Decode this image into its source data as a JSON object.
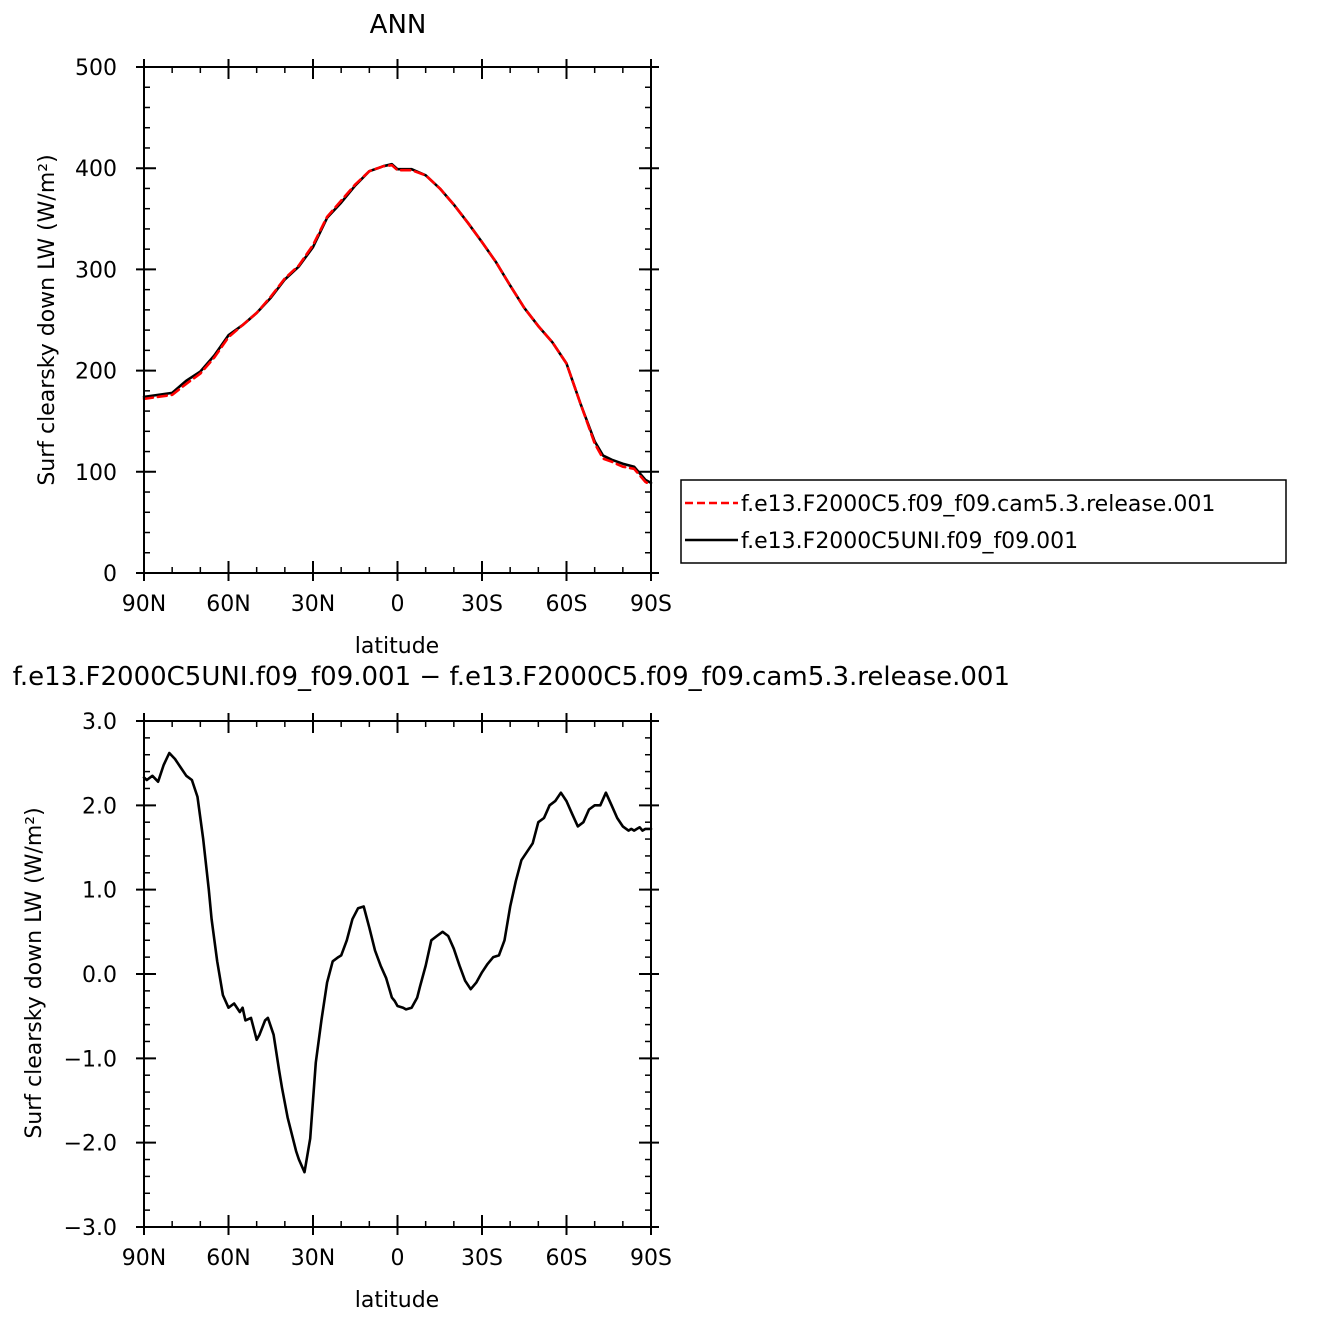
{
  "colors": {
    "axis": "#000000",
    "control": "#000000",
    "test": "#ff0000"
  },
  "chart_data": [
    {
      "type": "line",
      "title": "ANN",
      "xlabel": "latitude",
      "ylabel": "Surf clearsky down LW (W/m²)",
      "xlim": [
        90,
        -90
      ],
      "ylim": [
        0,
        500
      ],
      "xticks": [
        {
          "v": 90,
          "label": "90N"
        },
        {
          "v": 60,
          "label": "60N"
        },
        {
          "v": 30,
          "label": "30N"
        },
        {
          "v": 0,
          "label": "0"
        },
        {
          "v": -30,
          "label": "30S"
        },
        {
          "v": -60,
          "label": "60S"
        },
        {
          "v": -90,
          "label": "90S"
        }
      ],
      "yticks": [
        {
          "v": 0,
          "label": "0"
        },
        {
          "v": 100,
          "label": "100"
        },
        {
          "v": 200,
          "label": "200"
        },
        {
          "v": 300,
          "label": "300"
        },
        {
          "v": 400,
          "label": "400"
        },
        {
          "v": 500,
          "label": "500"
        }
      ],
      "legend_position": "right",
      "series": [
        {
          "name": "f.e13.F2000C5.f09_f09.cam5.3.release.001",
          "color": "#ff0000",
          "dash": "dashed",
          "x": [
            90,
            85,
            80,
            75,
            70,
            65,
            60,
            55,
            50,
            45,
            40,
            35,
            30,
            25,
            20,
            15,
            10,
            5,
            2,
            0,
            -5,
            -10,
            -15,
            -20,
            -25,
            -30,
            -35,
            -40,
            -45,
            -50,
            -55,
            -60,
            -65,
            -70,
            -73,
            -76,
            -80,
            -84,
            -88,
            -90
          ],
          "y": [
            172,
            174,
            176,
            187,
            197,
            213,
            233,
            245,
            257,
            273,
            291,
            304,
            324,
            352,
            368,
            384,
            397,
            402,
            403,
            398,
            398,
            393,
            380,
            364,
            346,
            327,
            307,
            284,
            262,
            244,
            228,
            207,
            167,
            128,
            113,
            110,
            105,
            103,
            90,
            87
          ]
        },
        {
          "name": "f.e13.F2000C5UNI.f09_f09.001",
          "color": "#000000",
          "dash": "solid",
          "x": [
            90,
            85,
            80,
            75,
            70,
            65,
            60,
            55,
            50,
            45,
            40,
            35,
            30,
            25,
            20,
            15,
            10,
            5,
            2,
            0,
            -5,
            -10,
            -15,
            -20,
            -25,
            -30,
            -35,
            -40,
            -45,
            -50,
            -55,
            -60,
            -65,
            -70,
            -73,
            -76,
            -80,
            -84,
            -88,
            -90
          ],
          "y": [
            174,
            176,
            178,
            190,
            199,
            215,
            235,
            245,
            257,
            272,
            290,
            303,
            322,
            351,
            366,
            383,
            397,
            402,
            404,
            399,
            399,
            393,
            380,
            364,
            346,
            327,
            307,
            284,
            262,
            244,
            228,
            207,
            167,
            130,
            116,
            112,
            108,
            105,
            92,
            89
          ]
        }
      ]
    },
    {
      "type": "line",
      "title": "f.e13.F2000C5UNI.f09_f09.001 − f.e13.F2000C5.f09_f09.cam5.3.release.001",
      "xlabel": "latitude",
      "ylabel": "Surf clearsky down LW (W/m²)",
      "xlim": [
        90,
        -90
      ],
      "ylim": [
        -3.0,
        3.0
      ],
      "xticks": [
        {
          "v": 90,
          "label": "90N"
        },
        {
          "v": 60,
          "label": "60N"
        },
        {
          "v": 30,
          "label": "30N"
        },
        {
          "v": 0,
          "label": "0"
        },
        {
          "v": -30,
          "label": "30S"
        },
        {
          "v": -60,
          "label": "60S"
        },
        {
          "v": -90,
          "label": "90S"
        }
      ],
      "yticks": [
        {
          "v": -3.0,
          "label": "−3.0"
        },
        {
          "v": -2.0,
          "label": "−2.0"
        },
        {
          "v": -1.0,
          "label": "−1.0"
        },
        {
          "v": 0.0,
          "label": "0.0"
        },
        {
          "v": 1.0,
          "label": "1.0"
        },
        {
          "v": 2.0,
          "label": "2.0"
        },
        {
          "v": 3.0,
          "label": "3.0"
        }
      ],
      "series": [
        {
          "color": "#000000",
          "dash": "solid",
          "x": [
            90,
            89,
            87,
            85,
            83,
            81,
            79,
            78,
            77,
            75,
            73,
            71,
            69,
            67,
            66,
            64,
            62,
            60,
            58,
            56,
            55,
            54,
            52,
            50,
            49,
            47,
            46,
            44,
            42,
            41,
            39,
            36,
            35,
            33,
            31,
            29,
            27,
            25,
            23,
            21,
            20,
            18,
            16,
            14,
            12,
            10,
            8,
            6,
            4,
            2,
            1,
            0,
            -2,
            -3,
            -5,
            -7,
            -8,
            -10,
            -12,
            -14,
            -16,
            -18,
            -20,
            -22,
            -24,
            -26,
            -28,
            -30,
            -32,
            -34,
            -36,
            -38,
            -40,
            -42,
            -44,
            -46,
            -48,
            -50,
            -52,
            -54,
            -56,
            -58,
            -60,
            -62,
            -64,
            -66,
            -68,
            -70,
            -72,
            -74,
            -76,
            -78,
            -80,
            -82,
            -83,
            -84,
            -85,
            -86,
            -87,
            -88,
            -90
          ],
          "y": [
            2.33,
            2.3,
            2.35,
            2.28,
            2.48,
            2.62,
            2.55,
            2.5,
            2.45,
            2.35,
            2.3,
            2.1,
            1.6,
            1.0,
            0.65,
            0.15,
            -0.25,
            -0.4,
            -0.35,
            -0.45,
            -0.4,
            -0.55,
            -0.52,
            -0.78,
            -0.72,
            -0.55,
            -0.52,
            -0.72,
            -1.15,
            -1.35,
            -1.7,
            -2.1,
            -2.2,
            -2.35,
            -1.95,
            -1.05,
            -0.55,
            -0.1,
            0.15,
            0.2,
            0.22,
            0.4,
            0.65,
            0.78,
            0.8,
            0.55,
            0.28,
            0.1,
            -0.05,
            -0.28,
            -0.32,
            -0.38,
            -0.4,
            -0.42,
            -0.4,
            -0.28,
            -0.15,
            0.1,
            0.4,
            0.45,
            0.5,
            0.45,
            0.3,
            0.1,
            -0.08,
            -0.18,
            -0.1,
            0.02,
            0.12,
            0.2,
            0.22,
            0.4,
            0.8,
            1.1,
            1.35,
            1.45,
            1.55,
            1.8,
            1.85,
            2.0,
            2.05,
            2.15,
            2.05,
            1.9,
            1.75,
            1.8,
            1.95,
            2.0,
            2.0,
            2.15,
            2.0,
            1.85,
            1.75,
            1.7,
            1.72,
            1.7,
            1.72,
            1.74,
            1.7,
            1.72,
            1.72
          ]
        }
      ]
    }
  ]
}
